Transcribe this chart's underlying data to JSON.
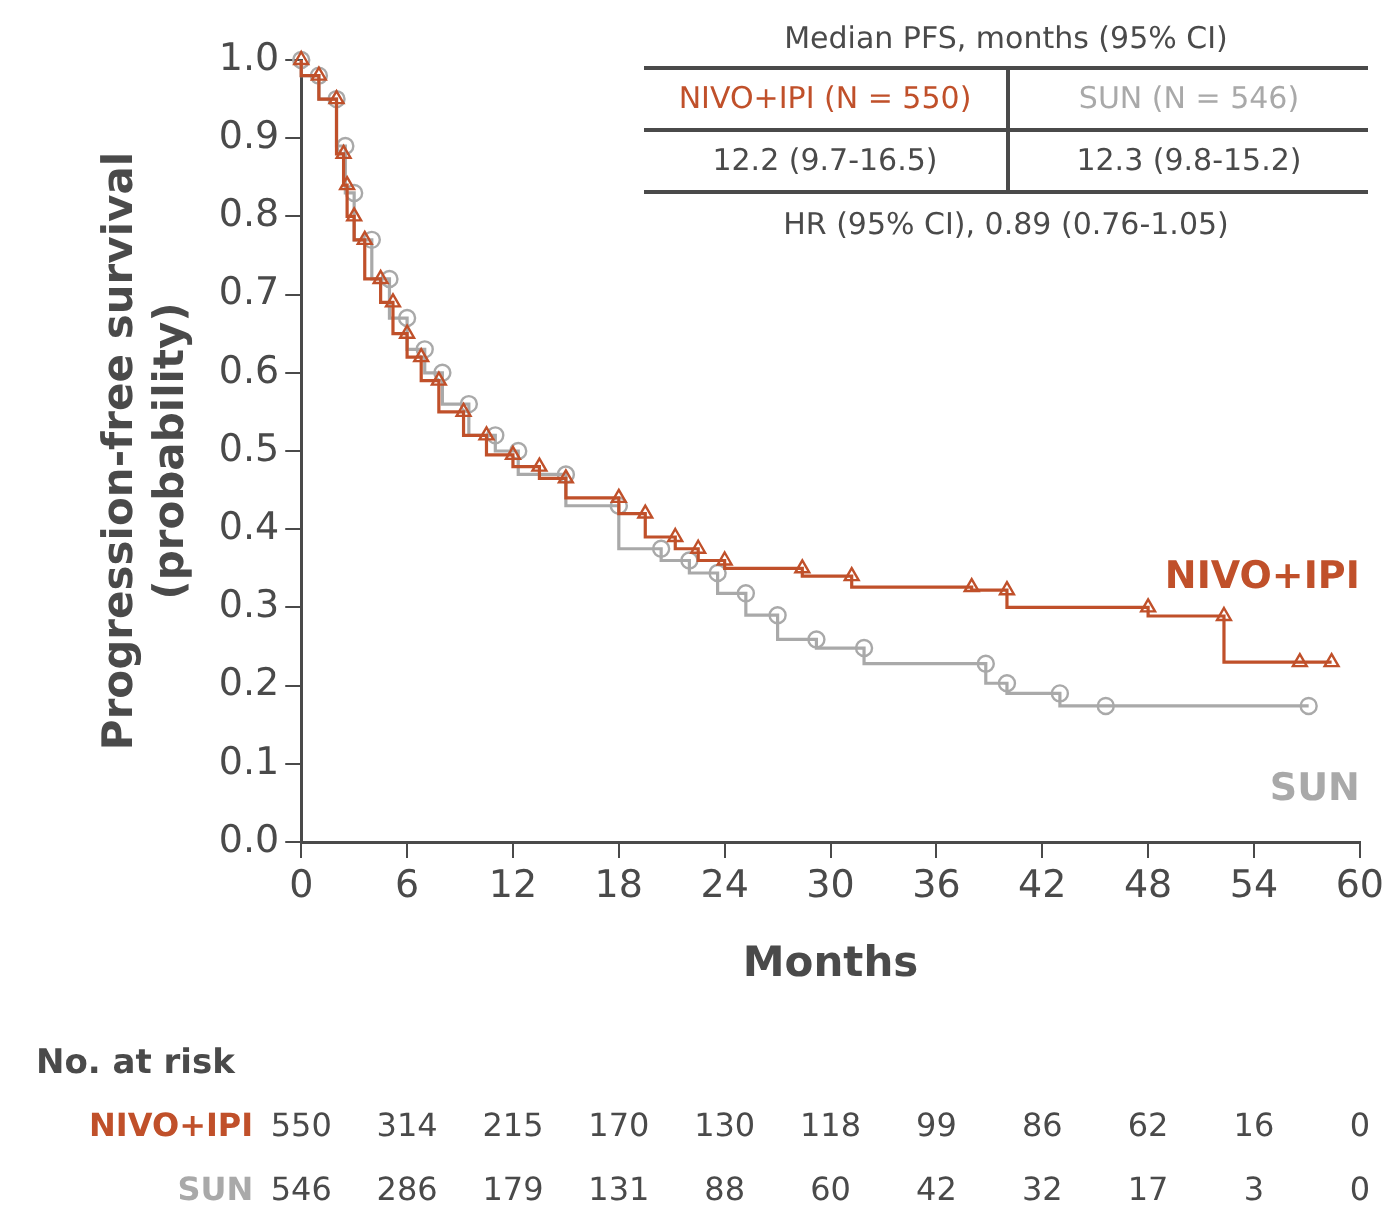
{
  "chart_data": {
    "type": "step",
    "xlabel": "Months",
    "ylabel": "Progression-free survival\n(probability)",
    "xlim": [
      0,
      60
    ],
    "xticks": [
      0,
      6,
      12,
      18,
      24,
      30,
      36,
      42,
      48,
      54,
      60
    ],
    "ylim": [
      0,
      1
    ],
    "yticks": [
      {
        "value": 0,
        "label": "0.0"
      },
      {
        "value": 0.1,
        "label": "0.1"
      },
      {
        "value": 0.2,
        "label": "0.2"
      },
      {
        "value": 0.3,
        "label": "0.3"
      },
      {
        "value": 0.4,
        "label": "0.4"
      },
      {
        "value": 0.5,
        "label": "0.5"
      },
      {
        "value": 0.6,
        "label": "0.6"
      },
      {
        "value": 0.7,
        "label": "0.7"
      },
      {
        "value": 0.8,
        "label": "0.8"
      },
      {
        "value": 0.9,
        "label": "0.9"
      },
      {
        "value": 1,
        "label": "1.0"
      }
    ],
    "series": [
      {
        "name": "NIVO+IPI",
        "color": "#c0502a",
        "marker": "triangle",
        "x": [
          0,
          1,
          2,
          2.4,
          2.6,
          3,
          3.6,
          4.5,
          5.2,
          6,
          6.8,
          7.8,
          9.2,
          10.5,
          12,
          13.5,
          15,
          18,
          19.5,
          21.2,
          22.5,
          24,
          28.4,
          31.2,
          38,
          40,
          48,
          52.3,
          56.6,
          58.4
        ],
        "values": [
          1,
          0.98,
          0.95,
          0.88,
          0.84,
          0.8,
          0.77,
          0.72,
          0.69,
          0.65,
          0.62,
          0.59,
          0.55,
          0.52,
          0.495,
          0.48,
          0.465,
          0.44,
          0.42,
          0.39,
          0.375,
          0.36,
          0.35,
          0.34,
          0.326,
          0.322,
          0.3,
          0.289,
          0.23,
          0.23
        ]
      },
      {
        "name": "SUN",
        "color": "#a9a9a9",
        "marker": "circle",
        "x": [
          0,
          1,
          2,
          2.5,
          3,
          4,
          5,
          6,
          7,
          8,
          9.5,
          11,
          12.3,
          15,
          18,
          20.4,
          22,
          23.6,
          25.2,
          27,
          29.2,
          31.9,
          38.8,
          40,
          43,
          45.6,
          57.1
        ],
        "values": [
          1,
          0.98,
          0.95,
          0.89,
          0.83,
          0.77,
          0.72,
          0.67,
          0.63,
          0.6,
          0.56,
          0.52,
          0.5,
          0.47,
          0.43,
          0.375,
          0.36,
          0.344,
          0.318,
          0.29,
          0.259,
          0.248,
          0.228,
          0.203,
          0.19,
          0.174,
          0.174
        ]
      }
    ],
    "annotations": [
      "Median PFS, months (95% CI)",
      "NIVO+IPI (N = 550)",
      "SUN (N = 546)",
      "12.2 (9.7-16.5)",
      "12.3 (9.8-15.2)",
      "HR (95% CI), 0.89 (0.76-1.05)",
      "No. at risk",
      "550 314 215 170 130 118 99 86 62 16 0",
      "546 286 179 131 88 60 42 32 17 3 0"
    ]
  }
}
